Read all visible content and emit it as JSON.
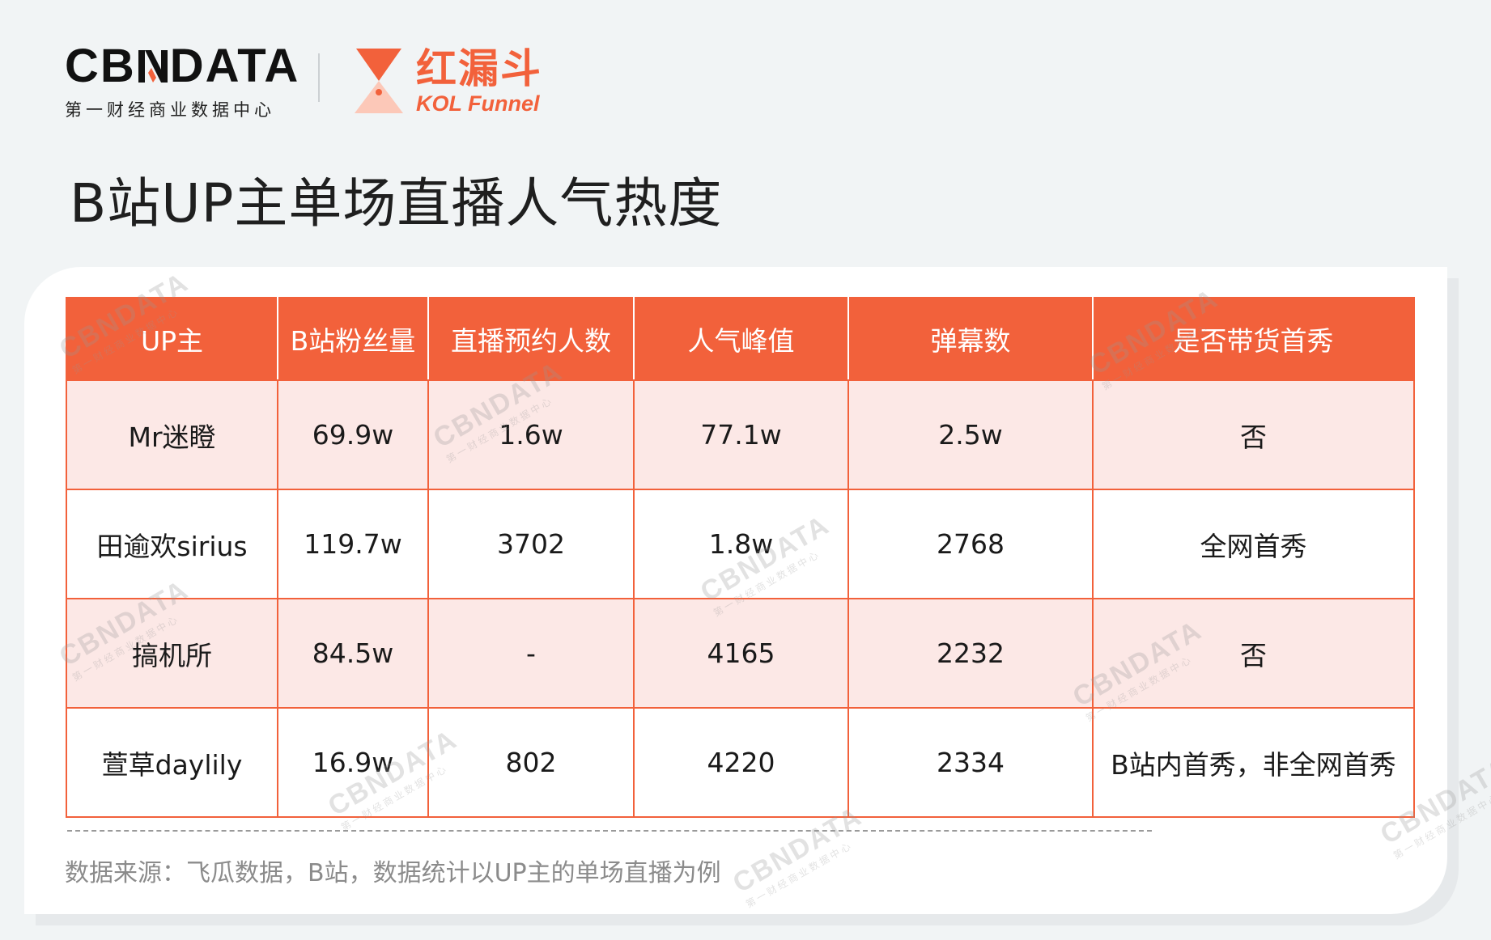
{
  "header": {
    "cbn_logo": {
      "word_left": "CB",
      "word_right": "DATA",
      "subtitle": "第一财经商业数据中心"
    },
    "kol_logo": {
      "name_cn": "红漏斗",
      "name_en": "KOL Funnel"
    }
  },
  "page_title": "B站UP主单场直播人气热度",
  "table": {
    "headers": [
      "UP主",
      "B站粉丝量",
      "直播预约人数",
      "人气峰值",
      "弹幕数",
      "是否带货首秀"
    ],
    "rows": [
      [
        "Mr迷瞪",
        "69.9w",
        "1.6w",
        "77.1w",
        "2.5w",
        "否"
      ],
      [
        "田逾欢sirius",
        "119.7w",
        "3702",
        "1.8w",
        "2768",
        "全网首秀"
      ],
      [
        "搞机所",
        "84.5w",
        "-",
        "4165",
        "2232",
        "否"
      ],
      [
        "萱草daylily",
        "16.9w",
        "802",
        "4220",
        "2334",
        "B站内首秀，非全网首秀"
      ]
    ]
  },
  "source_note": "数据来源：飞瓜数据，B站，数据统计以UP主的单场直播为例",
  "watermark": {
    "title": "CBNDATA",
    "subtitle": "第一财经商业数据中心"
  },
  "colors": {
    "accent": "#f2613b",
    "row_tint": "#fce8e6",
    "background": "#f1f4f5"
  }
}
